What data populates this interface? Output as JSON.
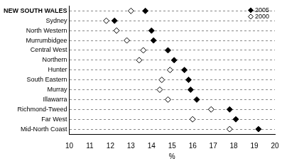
{
  "chart_data": {
    "type": "dot",
    "orientation": "horizontal",
    "categories": [
      "NEW SOUTH WALES",
      "Sydney",
      "North Western",
      "Murrumbidgee",
      "Central West",
      "Northern",
      "Hunter",
      "South Eastern",
      "Murray",
      "Illawarra",
      "Richmond-Tweed",
      "Far West",
      "Mid-North Coast"
    ],
    "series": [
      {
        "name": "2005",
        "color": "#000000",
        "marker": "diamond",
        "values": [
          13.7,
          12.2,
          14.0,
          14.1,
          14.8,
          15.1,
          15.6,
          15.8,
          15.9,
          16.2,
          17.8,
          18.1,
          19.2
        ]
      },
      {
        "name": "2000",
        "color": "#ffffff",
        "marker": "diamond",
        "values": [
          13.0,
          11.8,
          12.3,
          12.8,
          13.6,
          13.4,
          14.9,
          14.5,
          14.4,
          14.8,
          16.9,
          16.0,
          17.8
        ]
      }
    ],
    "x_label": "%",
    "xlim": [
      10,
      20
    ],
    "xticks": [
      10,
      11,
      12,
      13,
      14,
      15,
      16,
      17,
      18,
      19,
      20
    ],
    "grid": true,
    "legend": "top-right"
  }
}
